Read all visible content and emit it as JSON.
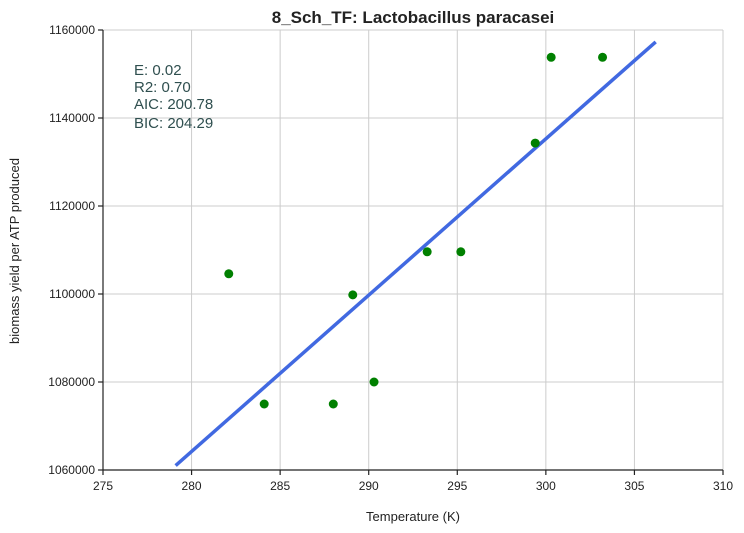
{
  "chart_data": {
    "type": "scatter",
    "title": "8_Sch_TF: Lactobacillus paracasei",
    "xlabel": "Temperature (K)",
    "ylabel": "biomass yield per ATP produced",
    "xlim": [
      275,
      310
    ],
    "ylim": [
      1060000,
      1160000
    ],
    "xticks": [
      275,
      280,
      285,
      290,
      295,
      300,
      305,
      310
    ],
    "yticks": [
      1060000,
      1080000,
      1100000,
      1120000,
      1140000,
      1160000
    ],
    "grid": true,
    "series": [
      {
        "kind": "points",
        "color": "#008000",
        "points": [
          {
            "x": 282.1,
            "y": 1104600
          },
          {
            "x": 284.1,
            "y": 1075000
          },
          {
            "x": 288.0,
            "y": 1075000
          },
          {
            "x": 289.1,
            "y": 1099800
          },
          {
            "x": 290.3,
            "y": 1080000
          },
          {
            "x": 293.3,
            "y": 1109600
          },
          {
            "x": 295.2,
            "y": 1109600
          },
          {
            "x": 299.4,
            "y": 1134300
          },
          {
            "x": 300.3,
            "y": 1153800
          },
          {
            "x": 303.2,
            "y": 1153800
          }
        ]
      },
      {
        "kind": "fit-line",
        "color": "#4169e1",
        "points": [
          {
            "x": 279.1,
            "y": 1061000
          },
          {
            "x": 306.2,
            "y": 1157300
          }
        ]
      }
    ],
    "annotations": [
      "E:  0.02",
      "R2:  0.70",
      "AIC: 200.78",
      "BIC: 204.29"
    ]
  }
}
